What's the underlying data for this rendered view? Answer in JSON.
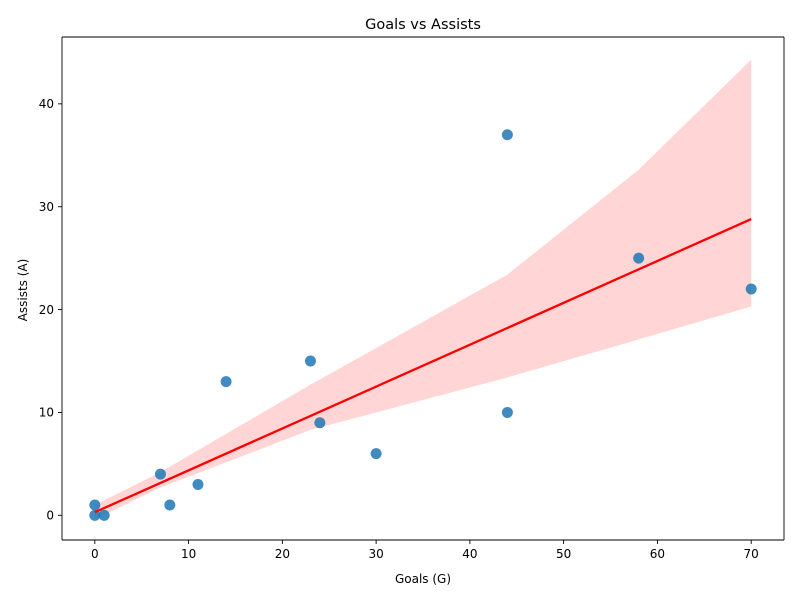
{
  "chart_data": {
    "type": "scatter",
    "title": "Goals vs Assists",
    "xlabel": "Goals (G)",
    "ylabel": "Assists (A)",
    "xlim": [
      -3.5,
      73.5
    ],
    "ylim": [
      -2.4,
      46.5
    ],
    "xticks": [
      0,
      10,
      20,
      30,
      40,
      50,
      60,
      70
    ],
    "yticks": [
      0,
      10,
      20,
      30,
      40
    ],
    "grid": false,
    "legend": "none",
    "point_color": "#1f77b4",
    "regression_color": "#ff0000",
    "ci_color": "#ffb3b3",
    "points": [
      {
        "x": 44,
        "y": 37
      },
      {
        "x": 58,
        "y": 25
      },
      {
        "x": 70,
        "y": 22
      },
      {
        "x": 23,
        "y": 15
      },
      {
        "x": 14,
        "y": 13
      },
      {
        "x": 44,
        "y": 10
      },
      {
        "x": 24,
        "y": 9
      },
      {
        "x": 30,
        "y": 6
      },
      {
        "x": 7,
        "y": 4
      },
      {
        "x": 11,
        "y": 3
      },
      {
        "x": 8,
        "y": 1
      },
      {
        "x": 0,
        "y": 1
      },
      {
        "x": 0,
        "y": 0
      },
      {
        "x": 1,
        "y": 0
      }
    ],
    "regression": {
      "x": [
        0,
        70
      ],
      "y": [
        0.3,
        28.8
      ]
    },
    "confidence_band": {
      "x": [
        0,
        7,
        23,
        44,
        58,
        70
      ],
      "lower": [
        -0.4,
        2.7,
        8.3,
        13.4,
        17.1,
        20.3
      ],
      "upper": [
        1.0,
        4.2,
        12.7,
        23.4,
        33.6,
        44.3
      ]
    }
  }
}
